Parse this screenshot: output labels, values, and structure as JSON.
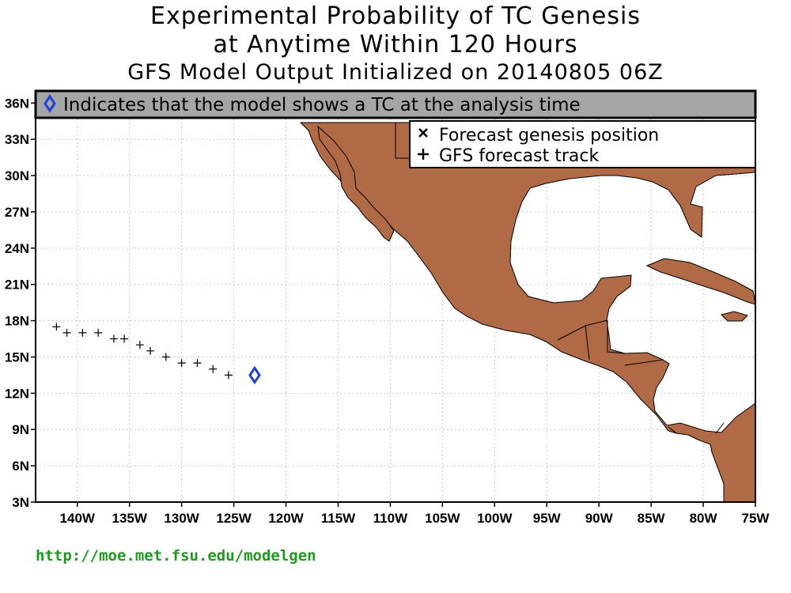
{
  "title": {
    "line1": "Experimental Probability of TC Genesis",
    "line2": "at Anytime Within 120 Hours",
    "line3": "GFS Model Output Initialized on 20140805 06Z"
  },
  "analysis_note": "Indicates that the model shows a TC at the analysis time",
  "legend": {
    "genesis": "Forecast genesis position",
    "track": "GFS forecast track"
  },
  "axes": {
    "lon_labels": [
      "140W",
      "135W",
      "130W",
      "125W",
      "120W",
      "115W",
      "110W",
      "105W",
      "100W",
      "95W",
      "90W",
      "85W",
      "80W",
      "75W"
    ],
    "lat_labels": [
      "36N",
      "33N",
      "30N",
      "27N",
      "24N",
      "21N",
      "18N",
      "15N",
      "12N",
      "9N",
      "6N",
      "3N"
    ]
  },
  "map_data": {
    "lon_range": [
      -144,
      -75
    ],
    "lat_range": [
      3,
      37
    ],
    "land_color": "#b06a45",
    "analysis_marker_color": "#1f3fe0",
    "analysis_position": {
      "lon": -123,
      "lat": 13.5
    },
    "track": [
      {
        "lon": -142,
        "lat": 17.5
      },
      {
        "lon": -141,
        "lat": 17.0
      },
      {
        "lon": -139.5,
        "lat": 17.0
      },
      {
        "lon": -138,
        "lat": 17.0
      },
      {
        "lon": -136.5,
        "lat": 16.5
      },
      {
        "lon": -135.5,
        "lat": 16.5
      },
      {
        "lon": -134,
        "lat": 16.0
      },
      {
        "lon": -133,
        "lat": 15.5
      },
      {
        "lon": -131.5,
        "lat": 15.0
      },
      {
        "lon": -130,
        "lat": 14.5
      },
      {
        "lon": -128.5,
        "lat": 14.5
      },
      {
        "lon": -127,
        "lat": 14.0
      },
      {
        "lon": -125.5,
        "lat": 13.5
      }
    ]
  },
  "footer_url": "http://moe.met.fsu.edu/modelgen"
}
